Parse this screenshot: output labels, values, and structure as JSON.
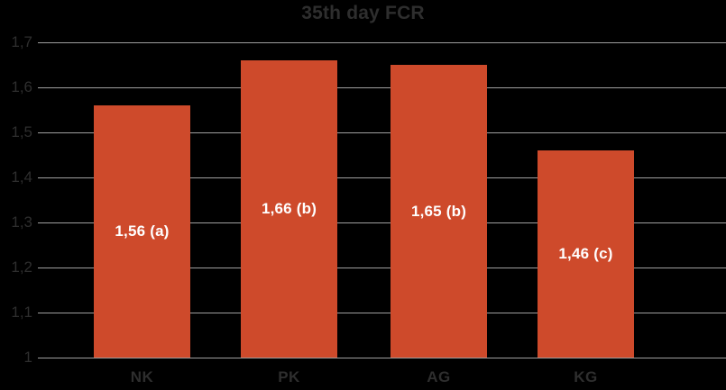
{
  "chart_data": {
    "type": "bar",
    "title": "35th day FCR",
    "categories": [
      "NK",
      "PK",
      "AG",
      "KG"
    ],
    "values": [
      1.56,
      1.66,
      1.65,
      1.46
    ],
    "bar_labels": [
      "1,56 (a)",
      "1,66 (b)",
      "1,65 (b)",
      "1,46 (c)"
    ],
    "ylim": [
      1,
      1.7
    ],
    "yticks": [
      1.7,
      1.6,
      1.5,
      1.4,
      1.3,
      1.2,
      1.1,
      1.0
    ],
    "ytick_labels": [
      "1,7",
      "1,6",
      "1,5",
      "1,4",
      "1,3",
      "1,2",
      "1,1",
      "1"
    ],
    "xlabel": "",
    "ylabel": "",
    "grid": "horizontal",
    "legend": "none",
    "colors": {
      "background": "#000000",
      "bar": "#CE4A2B",
      "gridline": "#9F9F9F",
      "axis_text": "#2E2E2E",
      "title_text": "#2E2E2E",
      "bar_label_text": "#FFFFFF"
    }
  }
}
